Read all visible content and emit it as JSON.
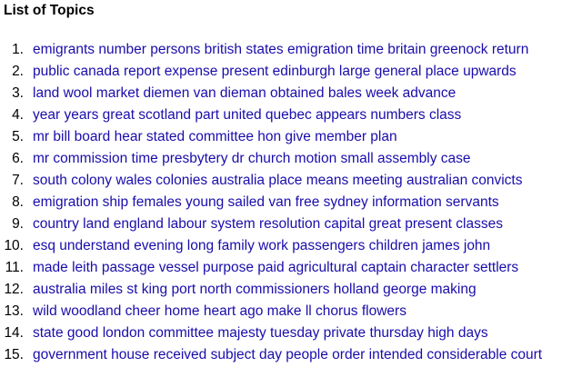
{
  "page": {
    "title": "List of Topics"
  },
  "colors": {
    "link": "#1a0dab",
    "text": "#000000",
    "background": "#ffffff"
  },
  "topics": [
    {
      "number": "1.",
      "label": "emigrants number persons british states emigration time britain greenock return"
    },
    {
      "number": "2.",
      "label": "public canada report expense present edinburgh large general place upwards"
    },
    {
      "number": "3.",
      "label": "land wool market diemen van dieman obtained bales week advance"
    },
    {
      "number": "4.",
      "label": "year years great scotland part united quebec appears numbers class"
    },
    {
      "number": "5.",
      "label": "mr bill board hear stated committee hon give member plan"
    },
    {
      "number": "6.",
      "label": "mr commission time presbytery dr church motion small assembly case"
    },
    {
      "number": "7.",
      "label": "south colony wales colonies australia place means meeting australian convicts"
    },
    {
      "number": "8.",
      "label": "emigration ship females young sailed van free sydney information servants"
    },
    {
      "number": "9.",
      "label": "country land england labour system resolution capital great present classes"
    },
    {
      "number": "10.",
      "label": "esq understand evening long family work passengers children james john"
    },
    {
      "number": "11.",
      "label": "made leith passage vessel purpose paid agricultural captain character settlers"
    },
    {
      "number": "12.",
      "label": "australia miles st king port north commissioners holland george making"
    },
    {
      "number": "13.",
      "label": "wild woodland cheer home heart ago make ll chorus flowers"
    },
    {
      "number": "14.",
      "label": "state good london committee majesty tuesday private thursday high days"
    },
    {
      "number": "15.",
      "label": "government house received subject day people order intended considerable court"
    }
  ]
}
